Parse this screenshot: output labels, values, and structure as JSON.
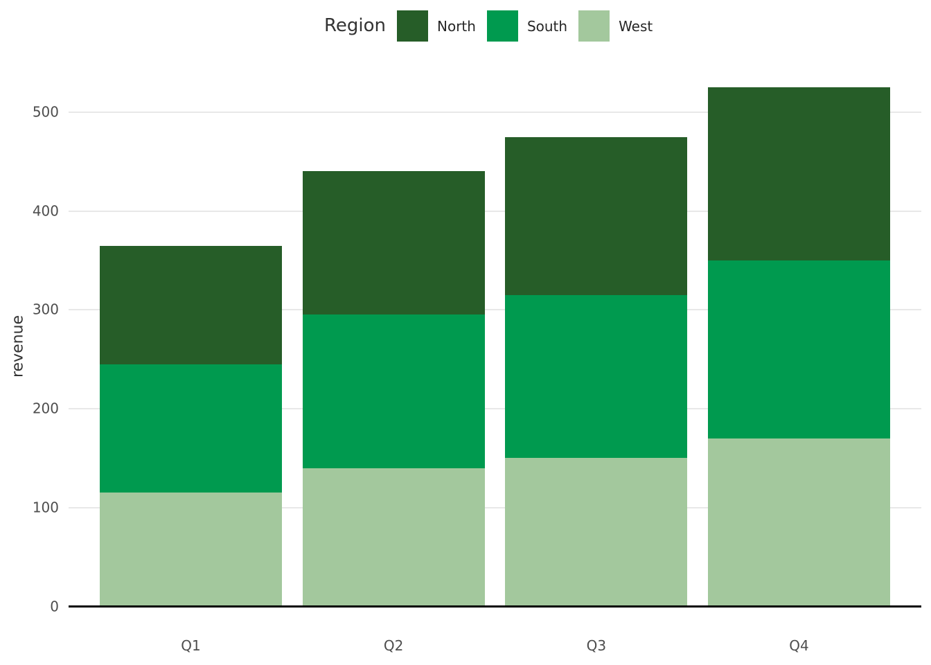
{
  "legend": {
    "title": "Region",
    "items": [
      {
        "label": "North",
        "color": "#265d28"
      },
      {
        "label": "South",
        "color": "#009a4f"
      },
      {
        "label": "West",
        "color": "#a3c89d"
      }
    ]
  },
  "chart_data": {
    "type": "bar",
    "stacked": true,
    "title": "",
    "xlabel": "",
    "ylabel": "revenue",
    "categories": [
      "Q1",
      "Q2",
      "Q3",
      "Q4"
    ],
    "series": [
      {
        "name": "West",
        "color": "#a3c89d",
        "values": [
          115,
          140,
          150,
          170
        ]
      },
      {
        "name": "South",
        "color": "#009a4f",
        "values": [
          130,
          155,
          165,
          180
        ]
      },
      {
        "name": "North",
        "color": "#265d28",
        "values": [
          120,
          145,
          160,
          175
        ]
      }
    ],
    "totals": [
      365,
      440,
      475,
      525
    ],
    "y_ticks": [
      0,
      100,
      200,
      300,
      400,
      500
    ],
    "ylim": [
      0,
      613
    ],
    "grid": "horizontal-major",
    "legend_position": "top-center",
    "legend_title": "Region",
    "legend_order": [
      "North",
      "South",
      "West"
    ]
  },
  "colors": {
    "background": "#ffffff",
    "gridline": "#e8e8e8",
    "axis_line": "#000000",
    "tick_text": "#4d4d4d",
    "label_text": "#333333"
  }
}
